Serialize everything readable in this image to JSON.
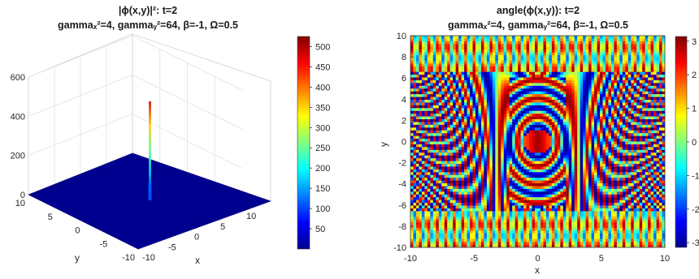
{
  "chart_data": [
    {
      "type": "surface3d",
      "title_line1": "|ϕ(x,y)|²: t=2",
      "title_line2": "gammaₓ²=4, gammaᵧ²=64, β=-1, Ω=0.5",
      "xlabel": "x",
      "ylabel": "y",
      "xlim": [
        -10,
        10
      ],
      "ylim": [
        -10,
        10
      ],
      "zlim": [
        0,
        600
      ],
      "x_ticks": [
        "-10",
        "-5",
        "0",
        "5",
        "10"
      ],
      "y_ticks": [
        "-10",
        "-5",
        "0",
        "5",
        "10"
      ],
      "z_ticks": [
        "0",
        "200",
        "400",
        "600"
      ],
      "peak": {
        "x": 0,
        "y": 0,
        "z": 480
      },
      "colorbar": {
        "min": 0,
        "max": 525,
        "ticks": [
          "50",
          "100",
          "150",
          "200",
          "250",
          "300",
          "350",
          "400",
          "450",
          "500"
        ]
      },
      "colormap": "jet",
      "grid": true
    },
    {
      "type": "heatmap",
      "title_line1": "angle(ϕ(x,y)): t=2",
      "title_line2": "gammaₓ²=4, gammaᵧ²=64, β=-1, Ω=0.5",
      "xlabel": "x",
      "ylabel": "y",
      "xlim": [
        -10,
        10
      ],
      "ylim": [
        -10,
        10
      ],
      "x_ticks": [
        "-10",
        "-5",
        "0",
        "5",
        "10"
      ],
      "y_ticks": [
        "-10",
        "-8",
        "-6",
        "-4",
        "-2",
        "0",
        "2",
        "4",
        "6",
        "8",
        "10"
      ],
      "colorbar": {
        "min": -3.14,
        "max": 3.14,
        "ticks": [
          "3",
          "2",
          "1",
          "0",
          "-1",
          "-2",
          "-3"
        ]
      },
      "colormap": "jet"
    }
  ]
}
